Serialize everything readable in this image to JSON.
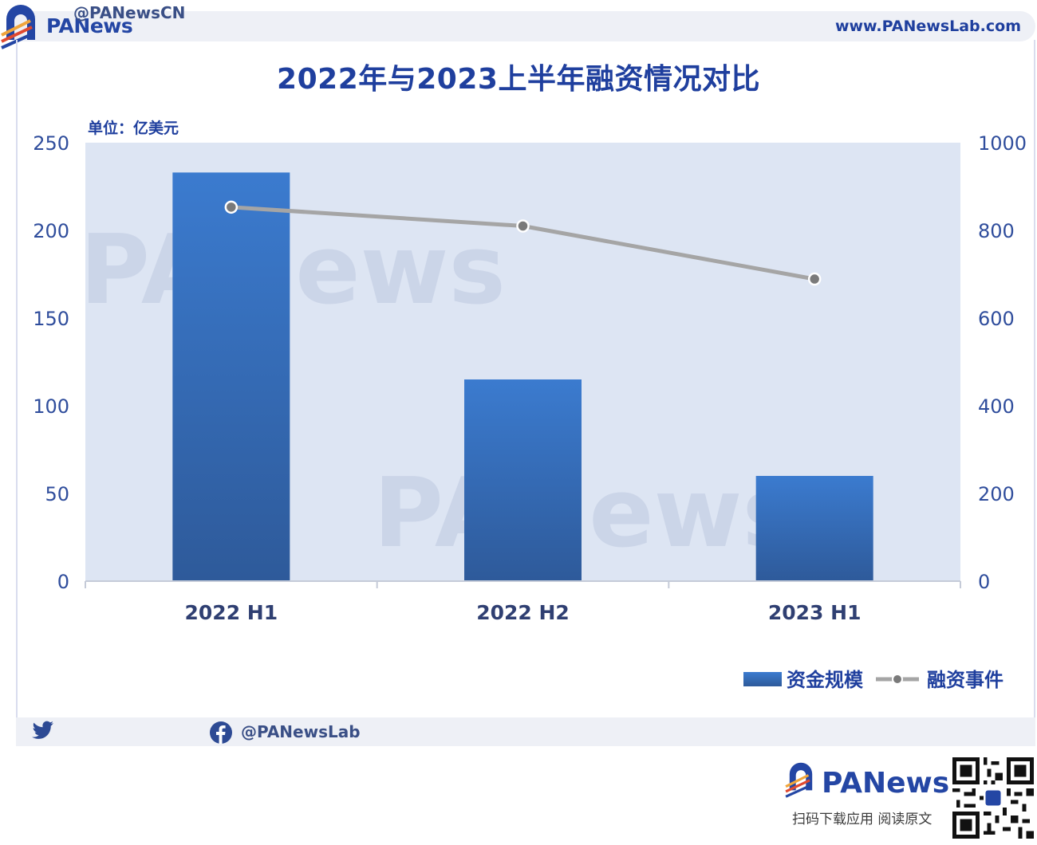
{
  "header": {
    "brand_pa": "PA",
    "brand_news": "News",
    "url": "www.PANewsLab.com"
  },
  "colors": {
    "brand_blue": "#1f3f9e",
    "plot_bg": "#dde5f3",
    "bar_top": "#3b7bcf",
    "bar_bottom": "#2e5a9a",
    "line": "#a5a5a5"
  },
  "chart_data": {
    "type": "bar",
    "title": "2022年与2023上半年融资情况对比",
    "unit_label": "单位：亿美元",
    "categories": [
      "2022 H1",
      "2022 H2",
      "2023 H1"
    ],
    "series": [
      {
        "name": "资金规模",
        "type": "bar",
        "axis": "left",
        "values": [
          233,
          115,
          60
        ]
      },
      {
        "name": "融资事件",
        "type": "line",
        "axis": "right",
        "values": [
          853,
          810,
          689
        ]
      }
    ],
    "y_left": {
      "min": 0,
      "max": 250,
      "ticks": [
        0,
        50,
        100,
        150,
        200,
        250
      ]
    },
    "y_right": {
      "min": 0,
      "max": 1000,
      "ticks": [
        0,
        200,
        400,
        600,
        800,
        1000
      ]
    },
    "grid": false,
    "legend_position": "bottom-right",
    "watermark": "PANews"
  },
  "footer": {
    "twitter": "@PANewsCN",
    "facebook": "@PANewsLab",
    "logo_pa": "PA",
    "logo_news": "News",
    "caption": "扫码下载应用 阅读原文"
  }
}
